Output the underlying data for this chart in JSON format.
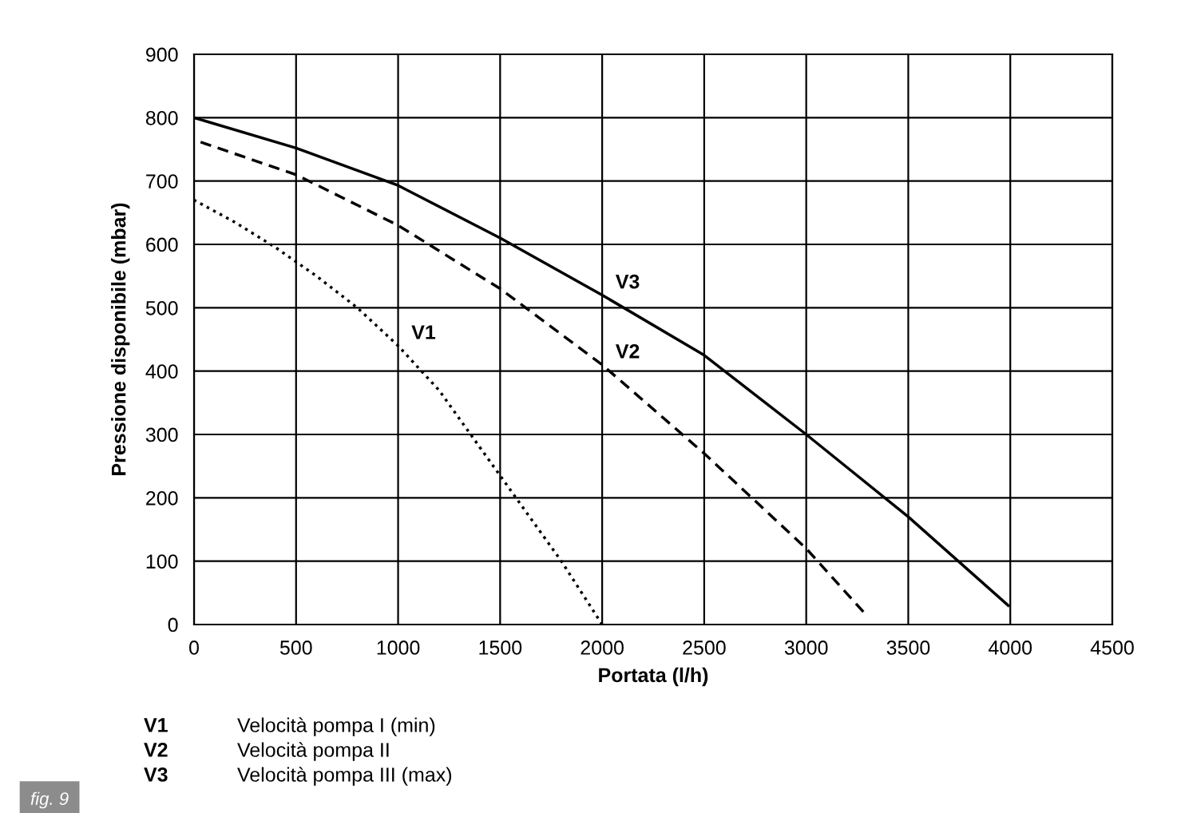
{
  "chart_data": {
    "type": "line",
    "xlabel": "Portata (l/h)",
    "ylabel": "Pressione disponibile (mbar)",
    "xlim": [
      0,
      4500
    ],
    "xticks": [
      0,
      500,
      1000,
      1500,
      2000,
      2500,
      3000,
      3500,
      4000,
      4500
    ],
    "ylim": [
      0,
      900
    ],
    "yticks": [
      0,
      100,
      200,
      300,
      400,
      500,
      600,
      700,
      800,
      900
    ],
    "grid": true,
    "marker": "none",
    "series": [
      {
        "name": "V1",
        "color": "#000000",
        "line_style": "dotted",
        "x": [
          0,
          200,
          400,
          600,
          800,
          1000,
          1200,
          1400,
          1600,
          1800,
          2000
        ],
        "values": [
          670,
          635,
          595,
          550,
          500,
          440,
          370,
          280,
          190,
          100,
          0
        ]
      },
      {
        "name": "V2",
        "color": "#000000",
        "line_style": "dashed",
        "x": [
          0,
          500,
          1000,
          1500,
          2000,
          2500,
          3000,
          3280
        ],
        "values": [
          765,
          710,
          630,
          530,
          410,
          270,
          120,
          20
        ]
      },
      {
        "name": "V3",
        "color": "#000000",
        "line_style": "solid",
        "x": [
          0,
          500,
          1000,
          1500,
          2000,
          2500,
          3000,
          3500,
          3990
        ],
        "values": [
          800,
          752,
          693,
          610,
          520,
          425,
          300,
          170,
          30
        ]
      }
    ],
    "annotations": [
      "V1 Velocità pompa I (min)",
      "V2 Velocità pompa II",
      "V3 Velocità pompa III (max)",
      "fig. 9"
    ]
  }
}
